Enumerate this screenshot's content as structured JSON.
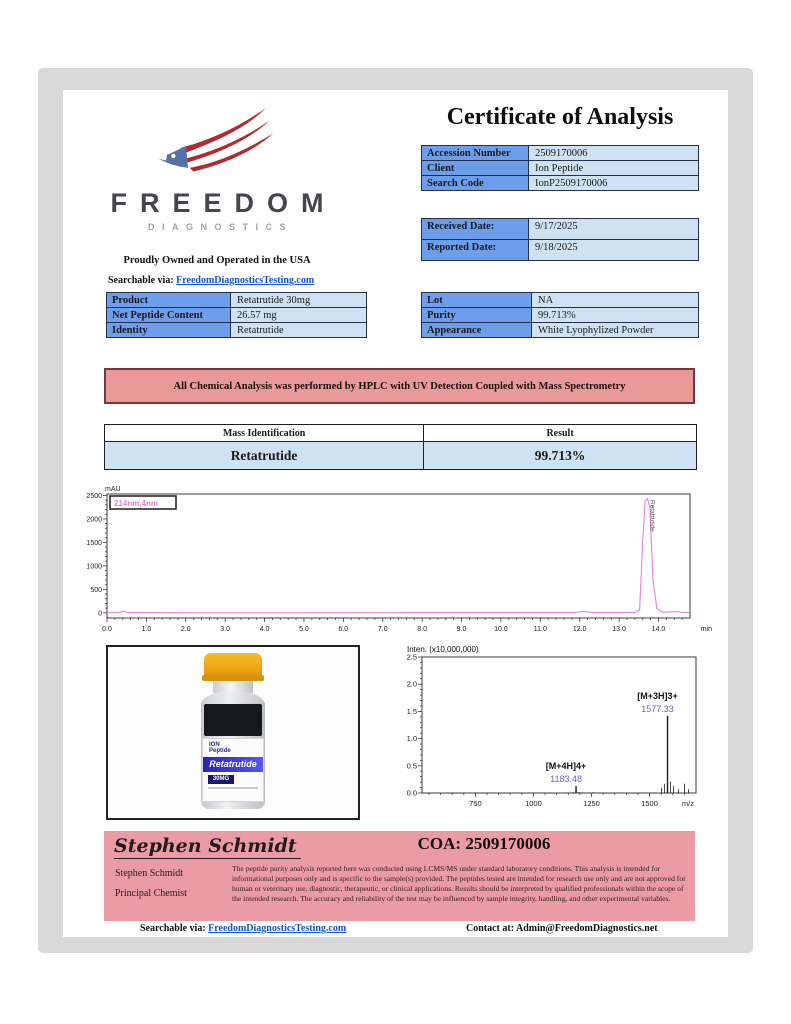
{
  "header": {
    "title": "Certificate of Analysis",
    "logo_name": "FREEDOM",
    "logo_sub": "DIAGNOSTICS",
    "tagline": "Proudly Owned and Operated in the USA",
    "search_prefix": "Searchable via:",
    "search_link": "FreedomDiagnosticsTesting.com"
  },
  "accession_table": {
    "rows": [
      {
        "label": "Accession Number",
        "value": "2509170006"
      },
      {
        "label": "Client",
        "value": "Ion Peptide"
      },
      {
        "label": "Search Code",
        "value": "IonP2509170006"
      }
    ]
  },
  "dates_table": {
    "rows": [
      {
        "label": "Received Date:",
        "value": "9/17/2025"
      },
      {
        "label": "Reported Date:",
        "value": "9/18/2025"
      }
    ]
  },
  "product_table": {
    "rows": [
      {
        "label": "Product",
        "value": "Retatrutide 30mg"
      },
      {
        "label": "Net Peptide Content",
        "value": "26.57 mg"
      },
      {
        "label": "Identity",
        "value": "Retatrutide"
      }
    ]
  },
  "lot_table": {
    "rows": [
      {
        "label": "Lot",
        "value": "NA"
      },
      {
        "label": "Purity",
        "value": "99.713%"
      },
      {
        "label": "Appearance",
        "value": "White Lyophylized Powder"
      }
    ]
  },
  "banner": {
    "text": "All Chemical Analysis was performed by HPLC with UV Detection Coupled with Mass Spectrometry"
  },
  "mass_table": {
    "headers": [
      "Mass Identification",
      "Result"
    ],
    "row": {
      "name": "Retatrutide",
      "result": "99.713%"
    }
  },
  "vial": {
    "brand_line1": "ION",
    "brand_line2": "Peptide",
    "name": "Retatrutide",
    "strength": "30MG"
  },
  "footer": {
    "signature": "Stephen Schmidt",
    "name": "Stephen Schmidt",
    "role": "Principal Chemist",
    "coa": "COA: 2509170006",
    "disclaimer": "The peptide purity analysis reported here was conducted using LCMS/MS under standard laboratory conditions. This analysis is intended for informational purposes only and is specific to the sample(s) provided. The peptides tested are intended for research use only and are not approved for human or veterinary use, diagnostic, therapeutic, or clinical applications. Results should be interpreted by qualified professionals within the scope of the intended research. The accuracy and reliability of the test may be influenced by sample integrity, handling, and other experimental variables.",
    "search_prefix": "Searchable via:",
    "search_link": "FreedomDiagnosticsTesting.com",
    "contact": "Contact at: Admin@FreedomDiagnostics.net"
  },
  "colors": {
    "table_header_blue": "#6d9eeb",
    "table_cell_blue": "#cfe2f3",
    "banner_pink": "#ea9999",
    "footer_pink": "#eb9ba3",
    "link_blue": "#1155cc",
    "chromatogram_line": "#e183dd",
    "spectrum_annotation_purple": "#6a5fc9",
    "logo_red": "#b3292e",
    "logo_blue": "#5572a8"
  },
  "chart_data": [
    {
      "type": "line",
      "kind": "hplc_chromatogram",
      "title": "HPLC UV chromatogram",
      "ylabel": "mAU",
      "xlabel": "min",
      "channel_label": "214nm,4nm",
      "xlim": [
        0,
        14.8
      ],
      "ylim": [
        -110,
        2530
      ],
      "x_ticks": [
        0,
        1,
        2,
        3,
        4,
        5,
        6,
        7,
        8,
        9,
        10,
        11,
        12,
        13,
        14
      ],
      "y_ticks": [
        0,
        500,
        1000,
        1500,
        2000,
        2500
      ],
      "line_color": "#e183dd",
      "peak": {
        "label": "Retatrutide",
        "retention_min": 13.7,
        "height_mAU": 2430
      },
      "series": [
        {
          "name": "214nm",
          "points": [
            [
              0,
              2
            ],
            [
              0.3,
              2
            ],
            [
              0.38,
              30
            ],
            [
              0.44,
              38
            ],
            [
              0.52,
              4
            ],
            [
              2,
              3
            ],
            [
              5,
              3
            ],
            [
              8,
              4
            ],
            [
              11.85,
              4
            ],
            [
              12.0,
              22
            ],
            [
              12.15,
              26
            ],
            [
              12.3,
              5
            ],
            [
              13.4,
              4
            ],
            [
              13.52,
              60
            ],
            [
              13.6,
              1500
            ],
            [
              13.66,
              2380
            ],
            [
              13.72,
              2430
            ],
            [
              13.78,
              2250
            ],
            [
              13.86,
              700
            ],
            [
              13.96,
              90
            ],
            [
              14.1,
              12
            ],
            [
              14.35,
              20
            ],
            [
              14.5,
              24
            ],
            [
              14.62,
              8
            ],
            [
              14.78,
              5
            ]
          ]
        }
      ]
    },
    {
      "type": "stick",
      "kind": "mass_spectrum",
      "title": "Inten. (x10,000,000)",
      "xlabel": "m/z",
      "xlim": [
        520,
        1700
      ],
      "ylim": [
        0,
        2.5
      ],
      "x_ticks": [
        750,
        1000,
        1250,
        1500
      ],
      "y_ticks": [
        0.0,
        0.5,
        1.0,
        1.5,
        2.0,
        2.5
      ],
      "stick_color": "#1b1b1b",
      "annotation_color": "#6a5fc9",
      "peaks": [
        {
          "mz": 1183.48,
          "intensity": 0.13,
          "ion": "[M+4H]4+",
          "value_label": "1183.48"
        },
        {
          "mz": 1577.33,
          "intensity": 1.42,
          "ion": "[M+3H]3+",
          "value_label": "1577.33"
        }
      ]
    }
  ]
}
